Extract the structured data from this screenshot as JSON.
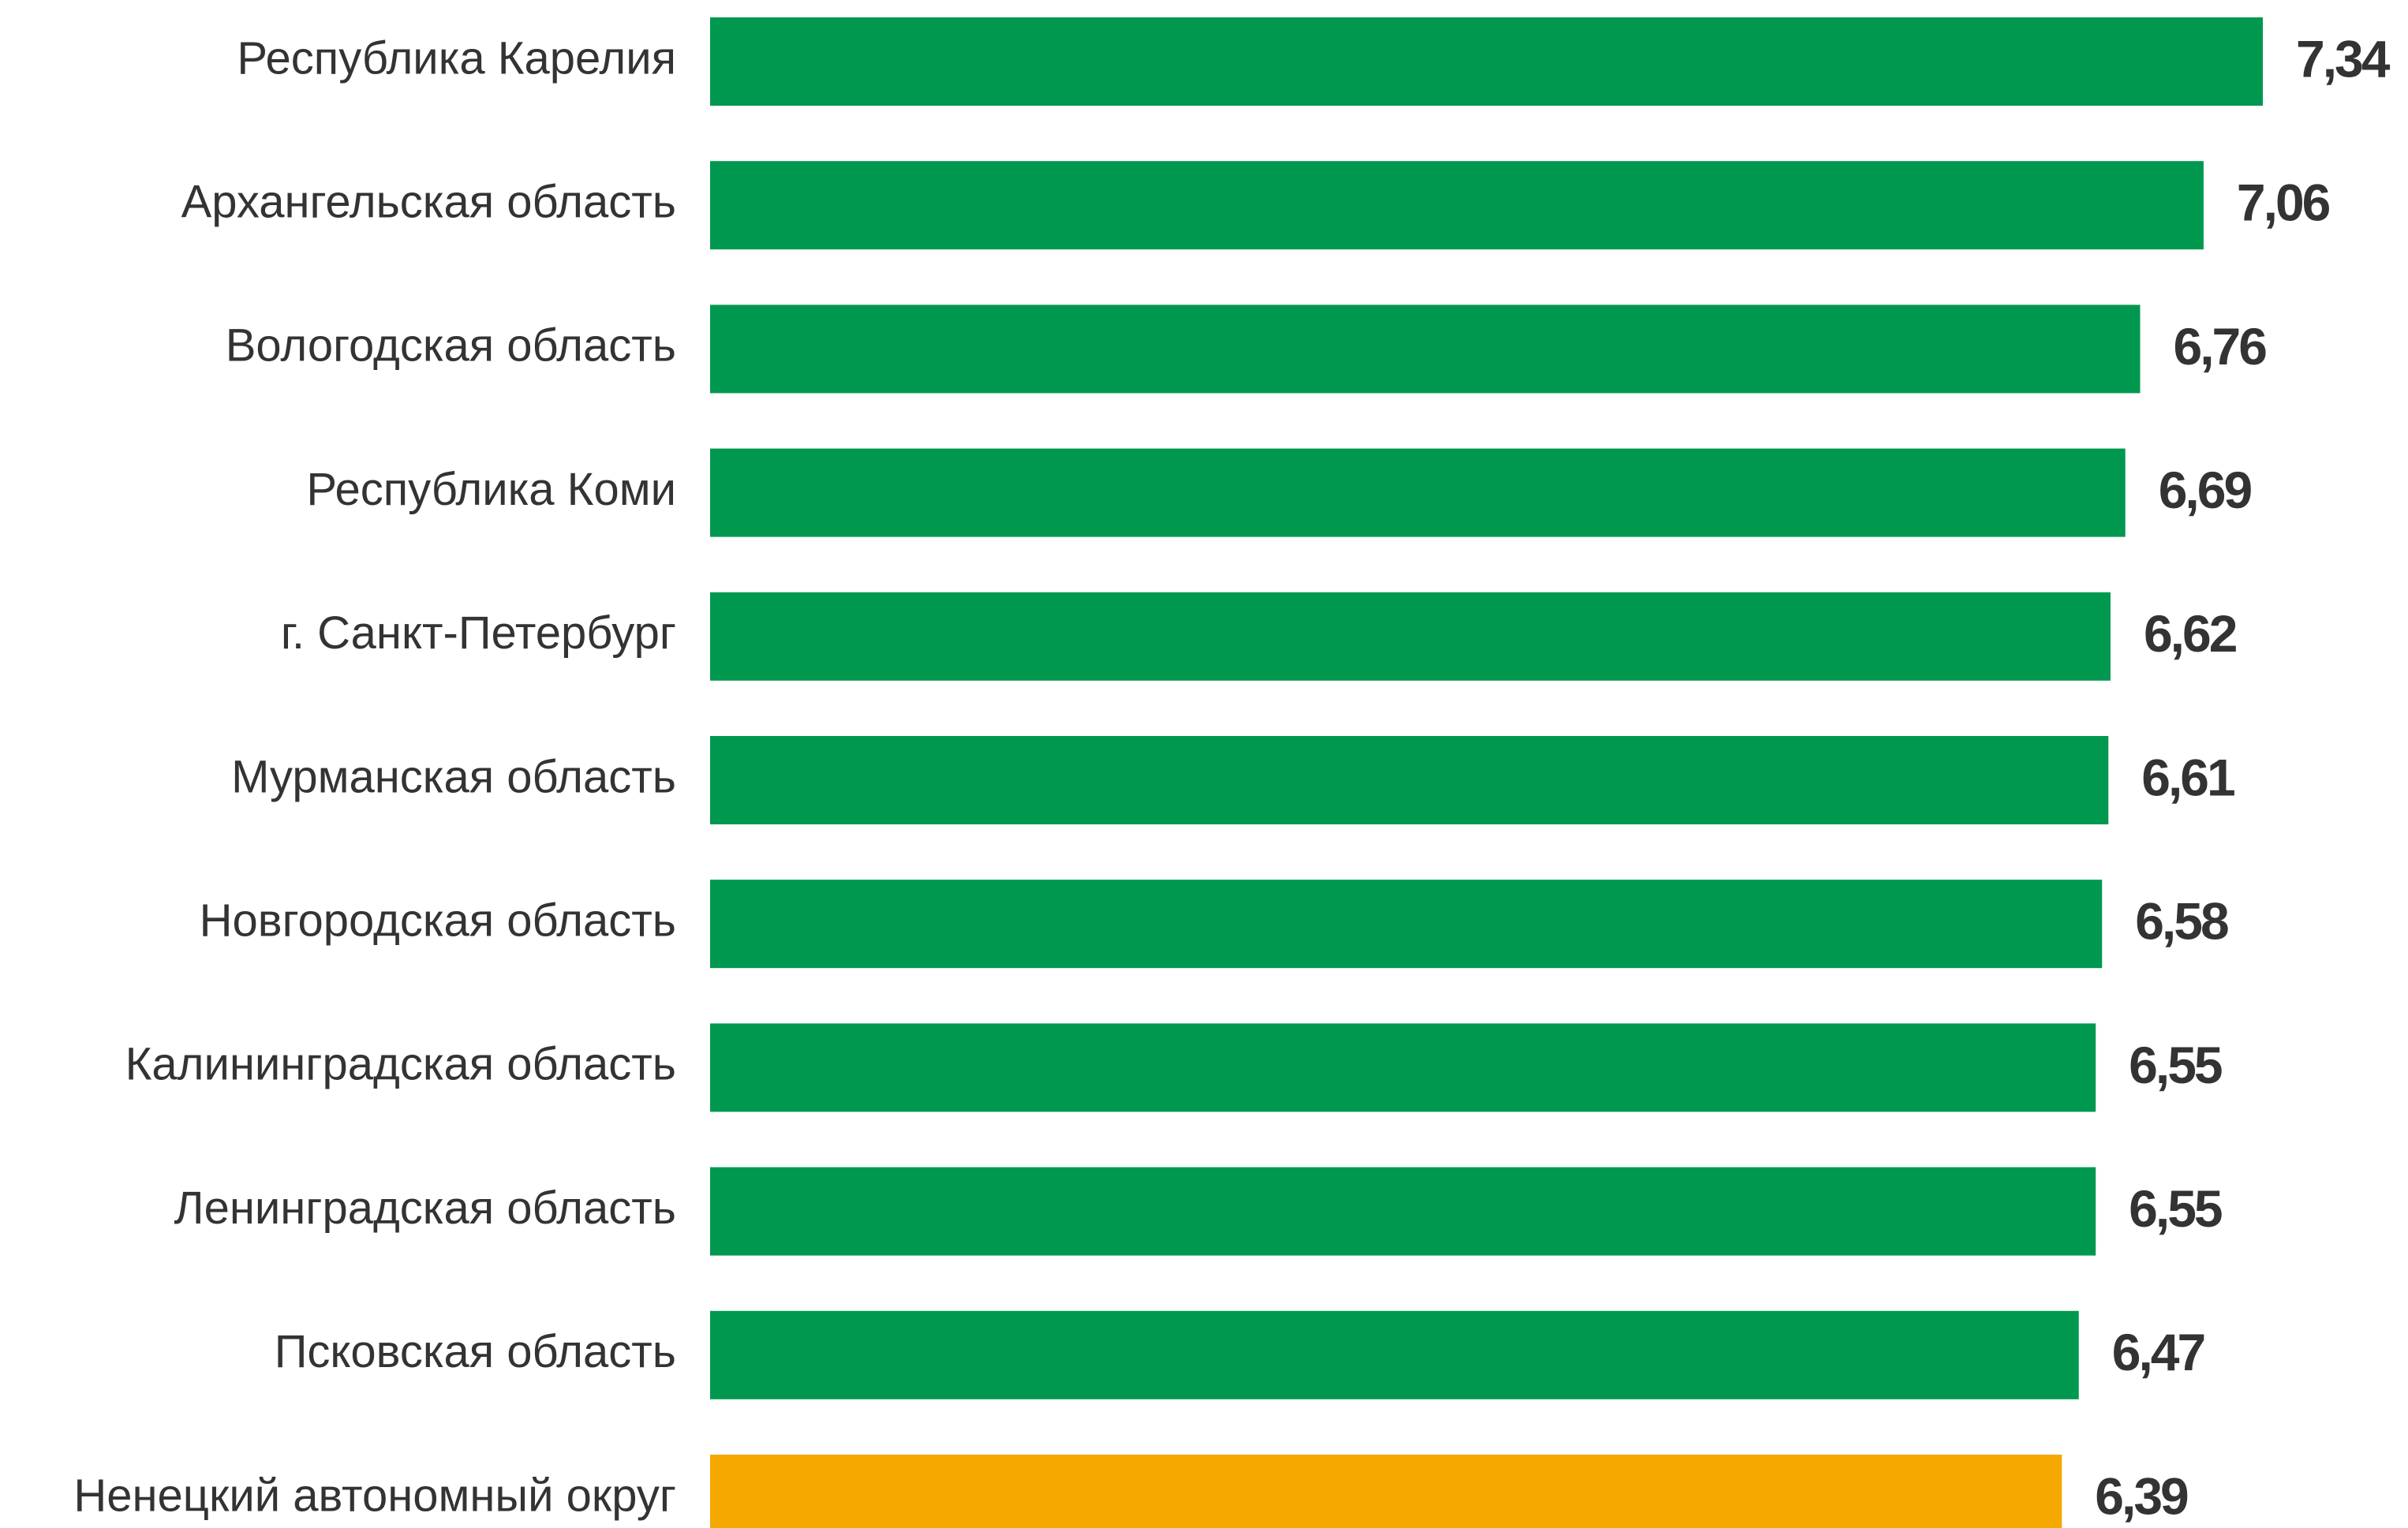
{
  "chart_data": {
    "type": "barh",
    "categories": [
      "Республика Карелия",
      "Архангельская область",
      "Вологодская область",
      "Республика Коми",
      "г. Санкт-Петербург",
      "Мурманская область",
      "Новгородская область",
      "Калининградская область",
      "Ленинградская область",
      "Псковская область",
      "Ненецкий автономный округ"
    ],
    "values": [
      7.34,
      7.06,
      6.76,
      6.69,
      6.62,
      6.61,
      6.58,
      6.55,
      6.55,
      6.47,
      6.39
    ],
    "value_labels": [
      "7,34",
      "7,06",
      "6,76",
      "6,69",
      "6,62",
      "6,61",
      "6,58",
      "6,55",
      "6,55",
      "6,47",
      "6,39"
    ],
    "colors": [
      "#00984f",
      "#00984f",
      "#00984f",
      "#00984f",
      "#00984f",
      "#00984f",
      "#00984f",
      "#00984f",
      "#00984f",
      "#00984f",
      "#f5a800"
    ]
  }
}
